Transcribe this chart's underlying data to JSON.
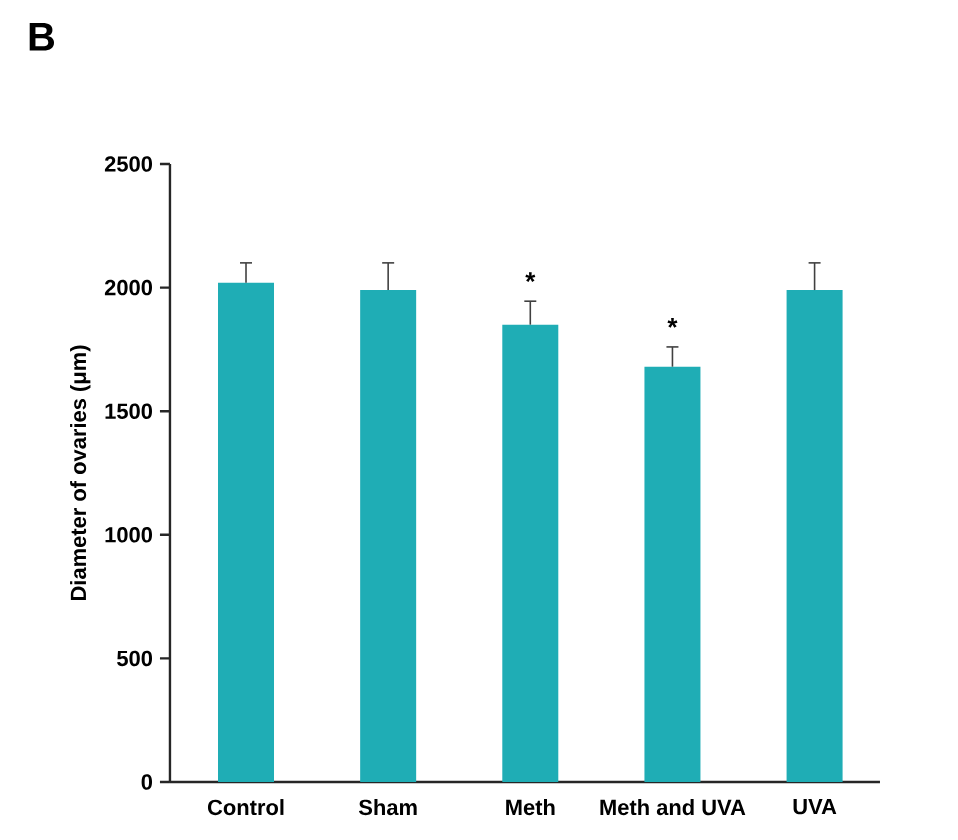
{
  "chart_data": {
    "type": "bar",
    "title": "B",
    "ylabel": "Diameter of ovaries (μm)",
    "categories": [
      "Control",
      "Sham",
      "Meth",
      "Meth and UVA",
      "UVA"
    ],
    "values": [
      2020,
      1990,
      1850,
      1680,
      1990
    ],
    "errors": [
      [
        2020,
        2100
      ],
      [
        1990,
        2100
      ],
      [
        1850,
        1945
      ],
      [
        1680,
        1760
      ],
      [
        1990,
        2100
      ]
    ],
    "color": "#1fadb5",
    "ylim": [
      0,
      2500
    ],
    "yticks": [
      0,
      500,
      1000,
      1500,
      2000,
      2500
    ],
    "annotations": [
      {
        "text": "*",
        "x": "Meth",
        "y": 1945
      },
      {
        "text": "*",
        "x": "Meth and UVA",
        "y": 1760
      }
    ]
  }
}
